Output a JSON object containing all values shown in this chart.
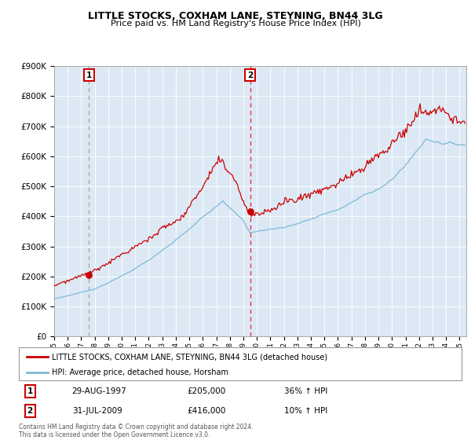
{
  "title": "LITTLE STOCKS, COXHAM LANE, STEYNING, BN44 3LG",
  "subtitle": "Price paid vs. HM Land Registry's House Price Index (HPI)",
  "legend_line1": "LITTLE STOCKS, COXHAM LANE, STEYNING, BN44 3LG (detached house)",
  "legend_line2": "HPI: Average price, detached house, Horsham",
  "sale1_date": "29-AUG-1997",
  "sale1_price": 205000,
  "sale1_label": "36% ↑ HPI",
  "sale2_date": "31-JUL-2009",
  "sale2_price": 416000,
  "sale2_label": "10% ↑ HPI",
  "footer": "Contains HM Land Registry data © Crown copyright and database right 2024.\nThis data is licensed under the Open Government Licence v3.0.",
  "hpi_color": "#7fb8d8",
  "price_color": "#cc0000",
  "sale_dot_color": "#cc0000",
  "vline1_color": "#aaaaaa",
  "vline2_color": "#ee3333",
  "background_color": "#dce9f5",
  "ylim": [
    0,
    900000
  ],
  "yticks": [
    0,
    100000,
    200000,
    300000,
    400000,
    500000,
    600000,
    700000,
    800000,
    900000
  ],
  "xlim_start": 1995.0,
  "xlim_end": 2025.5
}
